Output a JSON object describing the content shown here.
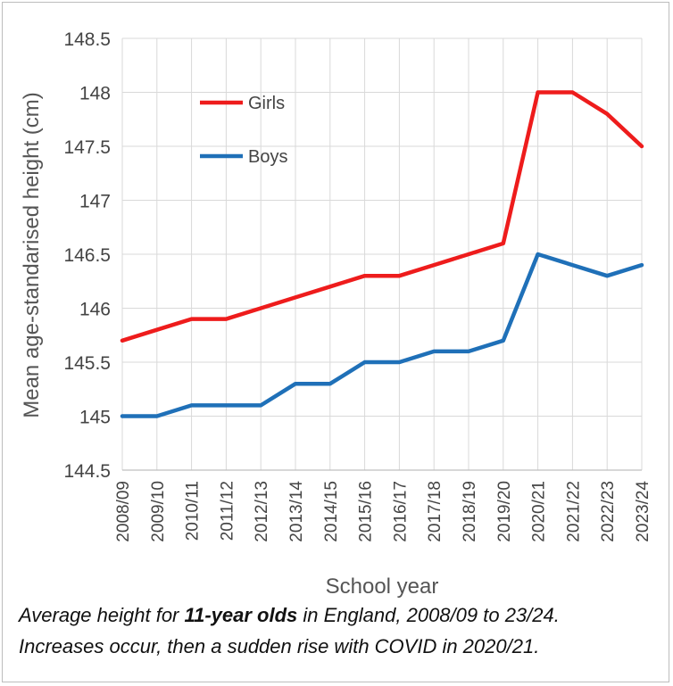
{
  "chart_data": {
    "type": "line",
    "title": "",
    "xlabel": "School year",
    "ylabel": "Mean age-standarised height (cm)",
    "ylim": [
      144.5,
      148.5
    ],
    "yticks": [
      "144.5",
      "145",
      "145.5",
      "146",
      "146.5",
      "147",
      "147.5",
      "148",
      "148.5"
    ],
    "grid": true,
    "categories": [
      "2008/09",
      "2009/10",
      "2010/11",
      "2011/12",
      "2012/13",
      "2013/14",
      "2014/15",
      "2015/16",
      "2016/17",
      "2017/18",
      "2018/19",
      "2019/20",
      "2020/21",
      "2021/22",
      "2022/23",
      "2023/24"
    ],
    "legend_position": "top-left",
    "series": [
      {
        "name": "Girls",
        "color": "#ee1c1c",
        "values": [
          145.7,
          145.8,
          145.9,
          145.9,
          146.0,
          146.1,
          146.2,
          146.3,
          146.3,
          146.4,
          146.5,
          146.6,
          148.0,
          148.0,
          147.8,
          147.5
        ]
      },
      {
        "name": "Boys",
        "color": "#1f70b8",
        "values": [
          145.0,
          145.0,
          145.1,
          145.1,
          145.1,
          145.3,
          145.3,
          145.5,
          145.5,
          145.6,
          145.6,
          145.7,
          146.5,
          146.4,
          146.3,
          146.4
        ]
      }
    ]
  },
  "caption": {
    "line1_pre": "Average height for ",
    "line1_bold": "11-year olds",
    "line1_post": "  in England, 2008/09 to 23/24.",
    "line2": "Increases occur, then a sudden rise with COVID in 2020/21."
  }
}
